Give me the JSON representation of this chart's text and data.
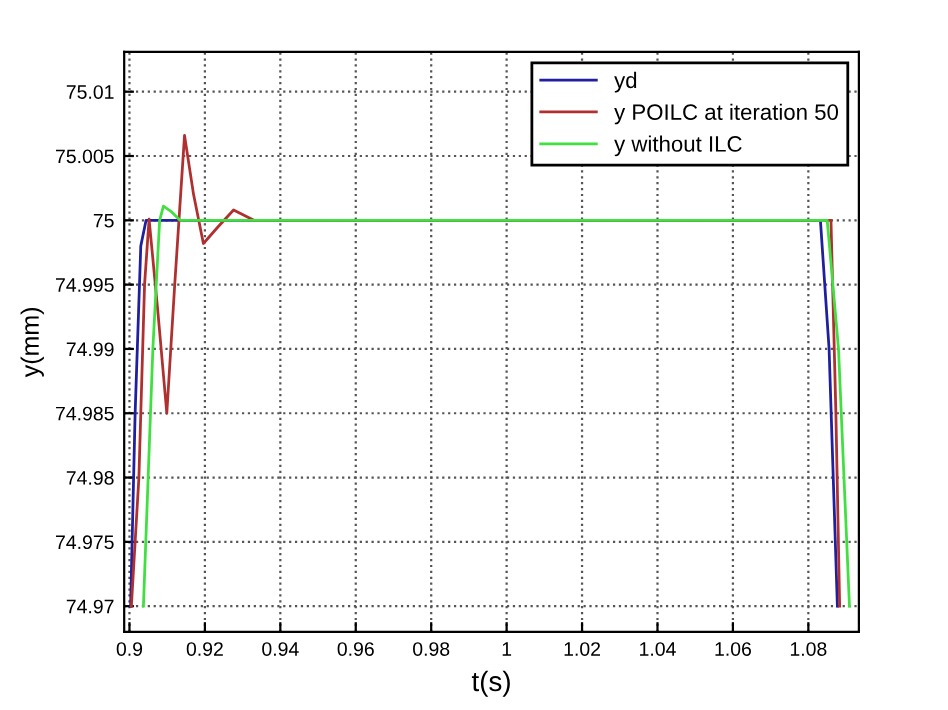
{
  "chart_data": {
    "type": "line",
    "xlabel": "t(s)",
    "ylabel": "y(mm)",
    "xlim": [
      0.8986,
      1.0934
    ],
    "ylim": [
      74.968,
      75.0131
    ],
    "xticks": [
      0.9,
      0.92,
      0.94,
      0.96,
      0.98,
      1,
      1.02,
      1.04,
      1.06,
      1.08
    ],
    "yticks": [
      74.97,
      74.975,
      74.98,
      74.985,
      74.99,
      74.995,
      75,
      75.005,
      75.01
    ],
    "grid": true,
    "legend": "top right",
    "line_style": "solid",
    "marker": "none",
    "series": [
      {
        "name": "yd",
        "color": "#1f1f9f",
        "x": [
          0.9003,
          0.9015,
          0.903,
          0.9044,
          0.96,
          1.0832,
          1.0855,
          1.0877
        ],
        "values": [
          74.97,
          74.985,
          74.998,
          75,
          75,
          75,
          74.99,
          74.97
        ]
      },
      {
        "name": "y POILC at iteration 50",
        "color": "#b03030",
        "x": [
          0.9005,
          0.9025,
          0.904,
          0.9052,
          0.9075,
          0.9099,
          0.912,
          0.9146,
          0.917,
          0.9196,
          0.9235,
          0.9276,
          0.933,
          1.086,
          1.0873,
          1.0883
        ],
        "values": [
          74.97,
          74.98,
          74.995,
          75.0001,
          74.993,
          74.985,
          74.995,
          75.0066,
          75.002,
          74.9982,
          74.9995,
          75.0008,
          75,
          75,
          74.985,
          74.97
        ]
      },
      {
        "name": "y without ILC",
        "color": "#40e040",
        "x": [
          0.9037,
          0.9062,
          0.908,
          0.909,
          0.911,
          0.9134,
          1.085,
          1.088,
          1.0909
        ],
        "values": [
          74.97,
          74.99,
          75,
          75.0011,
          75.0007,
          75,
          75,
          74.99,
          74.97
        ]
      }
    ]
  }
}
